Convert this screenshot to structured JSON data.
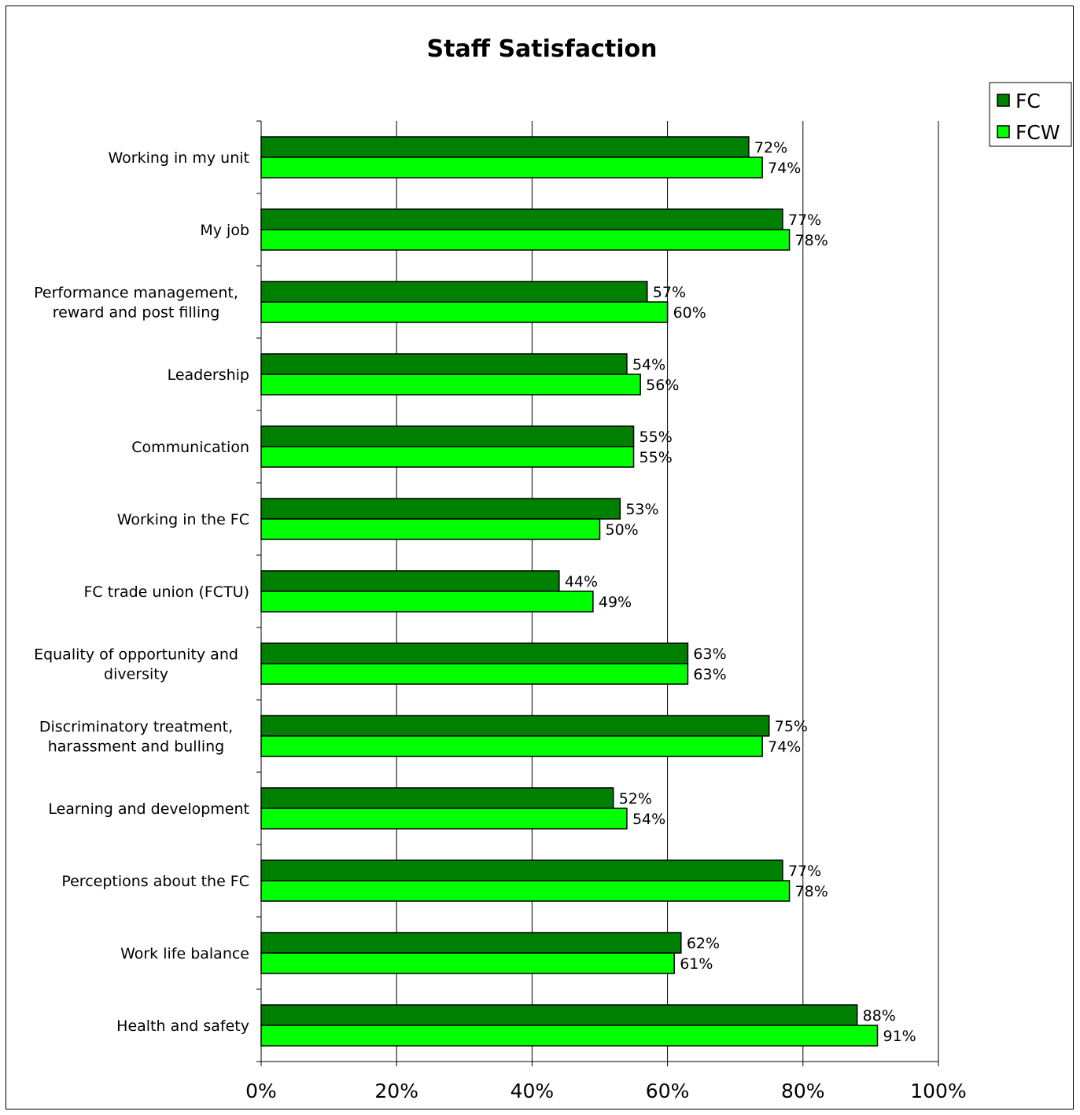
{
  "chart_data": {
    "type": "bar",
    "orientation": "horizontal",
    "title": "Staff Satisfaction",
    "xlabel": "",
    "ylabel": "",
    "xlim": [
      0,
      100
    ],
    "x_ticks": [
      "0%",
      "20%",
      "40%",
      "60%",
      "80%",
      "100%"
    ],
    "grid": true,
    "legend_position": "top-right",
    "categories": [
      "Working in my unit",
      "My job",
      "Performance management,\nreward and post filling",
      "Leadership",
      "Communication",
      "Working in the FC",
      "FC trade union (FCTU)",
      "Equality of opportunity and\ndiversity",
      "Discriminatory treatment,\nharassment and bulling",
      "Learning and development",
      "Perceptions about the FC",
      "Work life balance",
      "Health and safety"
    ],
    "series": [
      {
        "name": "FC",
        "color": "#008000",
        "values": [
          72,
          77,
          57,
          54,
          55,
          53,
          44,
          63,
          75,
          52,
          77,
          62,
          88
        ],
        "labels": [
          "72%",
          "77%",
          "57%",
          "54%",
          "55%",
          "53%",
          "44%",
          "63%",
          "75%",
          "52%",
          "77%",
          "62%",
          "88%"
        ]
      },
      {
        "name": "FCW",
        "color": "#00ff00",
        "values": [
          74,
          78,
          60,
          56,
          55,
          50,
          49,
          63,
          74,
          54,
          78,
          61,
          91
        ],
        "labels": [
          "74%",
          "78%",
          "60%",
          "56%",
          "55%",
          "50%",
          "49%",
          "63%",
          "74%",
          "54%",
          "78%",
          "61%",
          "91%"
        ]
      }
    ]
  }
}
